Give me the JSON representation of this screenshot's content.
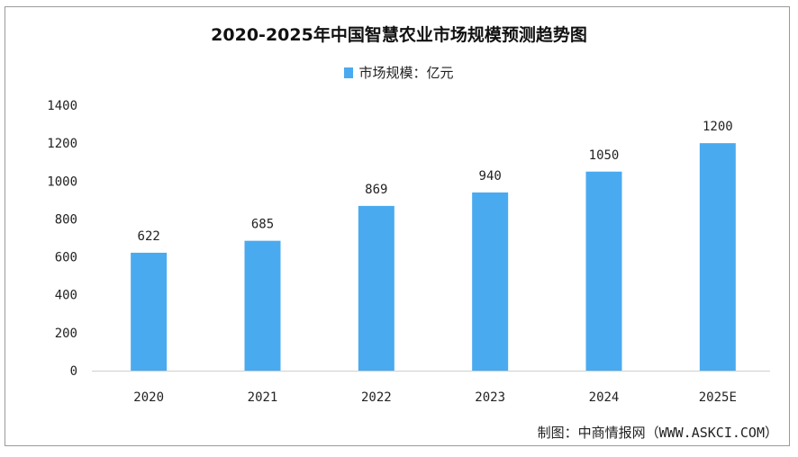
{
  "chart_data": {
    "type": "bar",
    "title": "2020-2025年中国智慧农业市场规模预测趋势图",
    "categories": [
      "2020",
      "2021",
      "2022",
      "2023",
      "2024",
      "2025E"
    ],
    "series": [
      {
        "name": "市场规模：亿元",
        "values": [
          622,
          685,
          869,
          940,
          1050,
          1200
        ]
      }
    ],
    "ylim": [
      0,
      1400
    ],
    "yticks": [
      0,
      200,
      400,
      600,
      800,
      1000,
      1200,
      1400
    ],
    "legend": "top-center",
    "grid": false,
    "bar_color": "#4aaaf0"
  },
  "source": "制图：中商情报网（WWW.ASKCI.COM）"
}
